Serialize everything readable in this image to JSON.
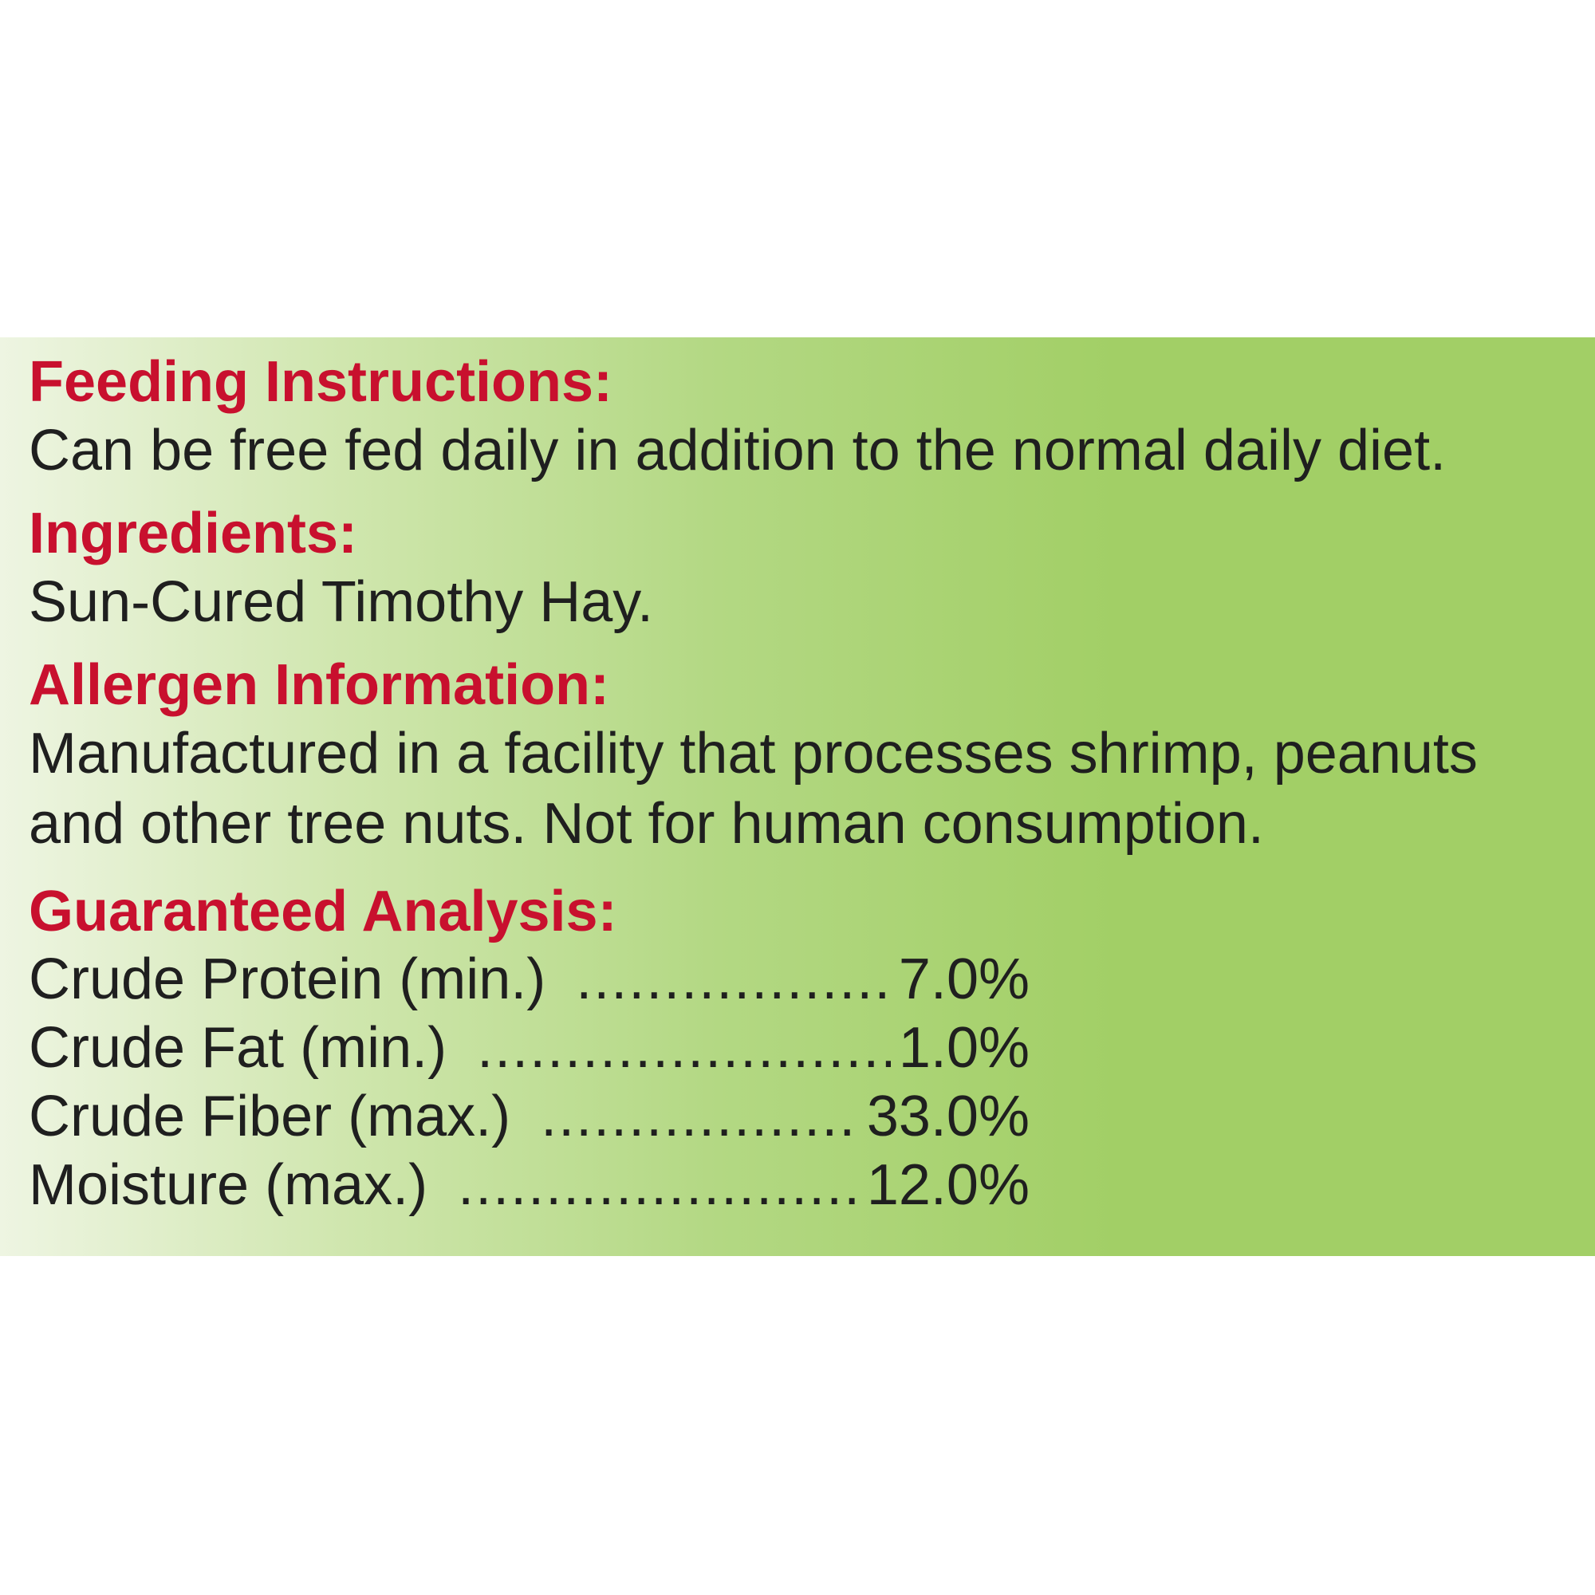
{
  "feeding": {
    "heading": "Feeding Instructions:",
    "text": "Can be free fed daily in addition to the normal daily diet."
  },
  "ingredients": {
    "heading": "Ingredients:",
    "text": "Sun-Cured Timothy Hay."
  },
  "allergen": {
    "heading": "Allergen Information:",
    "line1": "Manufactured in a facility that processes shrimp, peanuts",
    "line2": "and other tree nuts. Not for human consumption."
  },
  "analysis": {
    "heading": "Guaranteed Analysis:",
    "rows": [
      {
        "label": "Crude Protein (min.)",
        "value": "7.0%"
      },
      {
        "label": "Crude Fat (min.)",
        "value": "1.0%"
      },
      {
        "label": "Crude Fiber (max.)",
        "value": "33.0%"
      },
      {
        "label": "Moisture (max.)",
        "value": "12.0%"
      }
    ]
  },
  "colors": {
    "heading": "#c8102e",
    "text": "#1f1f1f",
    "panel_green": "#a2cf66"
  }
}
